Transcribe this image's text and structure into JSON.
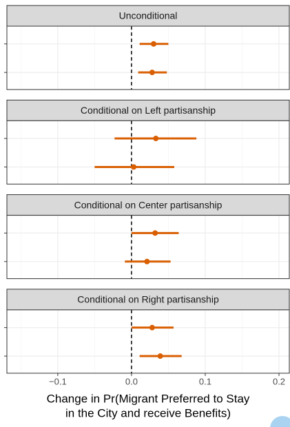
{
  "chart_data": {
    "type": "dot-interval",
    "color": "#d95f02",
    "xlabel": [
      "Change in Pr(Migrant Preferred to Stay",
      "in the City and receive Benefits)"
    ],
    "xlim": [
      -0.169,
      0.214
    ],
    "xticks": [
      {
        "value": -0.1,
        "label": "−0.1"
      },
      {
        "value": 0,
        "label": "0.0"
      },
      0.1,
      0.2
    ],
    "refline": 0,
    "grid": true,
    "panels": [
      {
        "title": "Unconditional",
        "values": [
          0.03,
          0.028
        ],
        "lower": [
          0.011,
          0.009
        ],
        "upper": [
          0.05,
          0.048
        ]
      },
      {
        "title": "Conditional on Left partisanship",
        "values": [
          0.033,
          0.003
        ],
        "lower": [
          -0.023,
          -0.05
        ],
        "upper": [
          0.088,
          0.058
        ]
      },
      {
        "title": "Conditional on Center partisanship",
        "values": [
          0.032,
          0.021
        ],
        "lower": [
          0.0,
          -0.009
        ],
        "upper": [
          0.064,
          0.053
        ]
      },
      {
        "title": "Conditional on Right partisanship",
        "values": [
          0.028,
          0.039
        ],
        "lower": [
          0.0,
          0.011
        ],
        "upper": [
          0.057,
          0.068
        ]
      }
    ]
  }
}
